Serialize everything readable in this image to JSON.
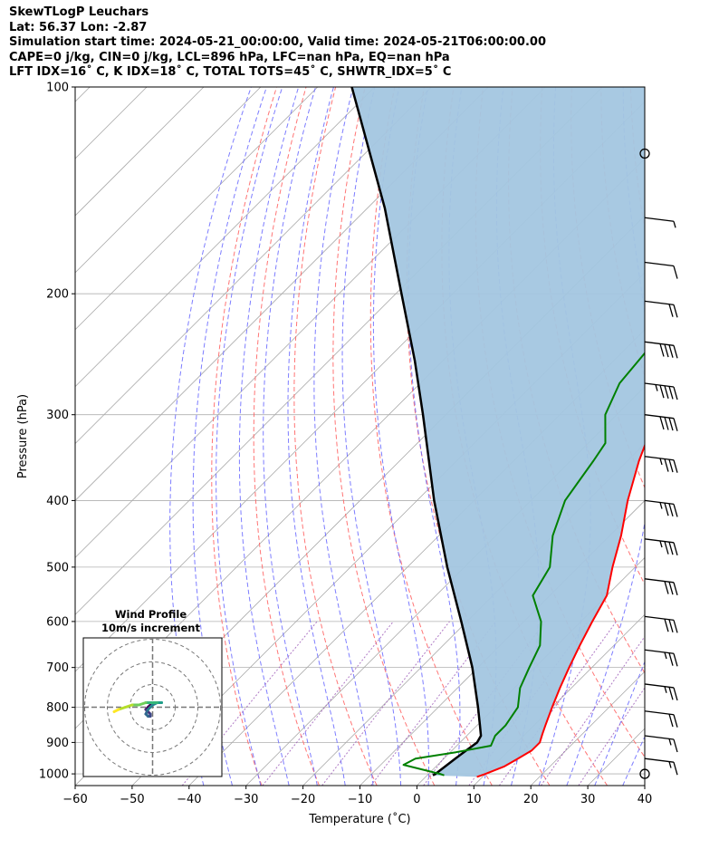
{
  "header": {
    "line1": "SkewTLogP Leuchars",
    "line2": "Lat: 56.37   Lon: -2.87",
    "line3": "Simulation start time: 2024-05-21_00:00:00, Valid time: 2024-05-21T06:00:00.00",
    "line4": "CAPE=0 j/kg, CIN=0 j/kg, LCL=896 hPa, LFC=nan hPa, EQ=nan hPa",
    "line5": "LFT IDX=16˚ C, K IDX=18˚ C, TOTAL TOTS=45˚ C, SHWTR_IDX=5˚ C"
  },
  "colors": {
    "temperature": "#ff0000",
    "dewpoint": "#008000",
    "parcel": "#000000",
    "cape_fill": "#a3c6e0",
    "dry_adiabat": "#ff6666",
    "moist_adiabat": "#6666ff",
    "mixing_ratio": "#9b59b6",
    "isotherm": "#aaaaaa",
    "grid": "#b0b0b0"
  },
  "chart_data": {
    "type": "line",
    "title": "SkewTLogP Leuchars",
    "xlabel": "Temperature (˚C)",
    "ylabel": "Pressure (hPa)",
    "xlim": [
      -60,
      40
    ],
    "ylim": [
      1040,
      100
    ],
    "yscale": "log",
    "grid": true,
    "x_ticks": [
      -60,
      -50,
      -40,
      -30,
      -20,
      -10,
      0,
      10,
      20,
      30,
      40
    ],
    "x_tick_labels": [
      "−60",
      "−50",
      "−40",
      "−30",
      "−20",
      "−10",
      "0",
      "10",
      "20",
      "30",
      "40"
    ],
    "y_ticks": [
      1000,
      900,
      800,
      700,
      600,
      500,
      400,
      300,
      200,
      100
    ],
    "y_tick_labels": [
      "1000",
      "900",
      "800",
      "700",
      "600",
      "500",
      "400",
      "300",
      "200",
      "100"
    ],
    "series": [
      {
        "key": "temperature",
        "pressure": [
          1010,
          1000,
          975,
          950,
          925,
          900,
          875,
          850,
          800,
          750,
          700,
          650,
          600,
          550,
          500,
          450,
          400,
          350,
          300,
          275,
          250,
          230,
          215,
          200,
          175,
          150,
          130,
          115,
          100
        ],
        "x": [
          9,
          10,
          12,
          13,
          14,
          14,
          13,
          12,
          10,
          8,
          6,
          4,
          2,
          0,
          -4,
          -8,
          -13,
          -18,
          -23,
          -26,
          -29,
          -30,
          -28,
          -25,
          -20,
          -14,
          -11,
          -8,
          -6
        ]
      },
      {
        "key": "dewpoint",
        "pressure": [
          1005,
          1000,
          985,
          970,
          950,
          930,
          910,
          880,
          850,
          800,
          750,
          700,
          650,
          600,
          550,
          500,
          450,
          400,
          350,
          330,
          300,
          270,
          240,
          210,
          200,
          180,
          160,
          150,
          130,
          110,
          100
        ],
        "x": [
          3,
          2,
          -2,
          -6,
          -5,
          1,
          6,
          5,
          5,
          4,
          1,
          -1,
          -3,
          -7,
          -13,
          -15,
          -20,
          -24,
          -26,
          -27,
          -32,
          -35,
          -36,
          -36,
          -38,
          -40,
          -43,
          -43,
          -43,
          -43,
          -43
        ]
      },
      {
        "key": "parcel",
        "pressure": [
          1005,
          1000,
          950,
          900,
          880,
          850,
          800,
          700,
          600,
          500,
          400,
          300,
          250,
          200,
          150,
          100
        ],
        "x": [
          1,
          1.2,
          2,
          3,
          2.5,
          0.5,
          -3,
          -11,
          -21,
          -33,
          -47,
          -64,
          -75,
          -89,
          -107,
          -134
        ]
      }
    ],
    "hodograph": {
      "title": "Wind Profile",
      "subtitle": "10m/s increment",
      "u": [
        -1,
        -2,
        -3,
        -2,
        -1,
        -1,
        -2,
        -3,
        -2,
        0,
        2,
        4,
        2,
        0,
        -3,
        -6,
        -9,
        -12,
        -15,
        -17
      ],
      "v": [
        1,
        0,
        -1,
        -2,
        -3,
        -4,
        -4,
        -3,
        -1,
        1,
        2,
        2,
        2,
        2,
        2,
        1,
        1,
        0,
        -1,
        -2
      ]
    },
    "wind_barbs": {
      "pressure": [
        125,
        155,
        180,
        205,
        235,
        270,
        300,
        345,
        400,
        455,
        520,
        590,
        660,
        740,
        810,
        880,
        950,
        1000
      ],
      "speed_kt": [
        0,
        5,
        10,
        20,
        40,
        45,
        40,
        35,
        35,
        35,
        30,
        30,
        25,
        25,
        20,
        15,
        15,
        0
      ]
    }
  }
}
